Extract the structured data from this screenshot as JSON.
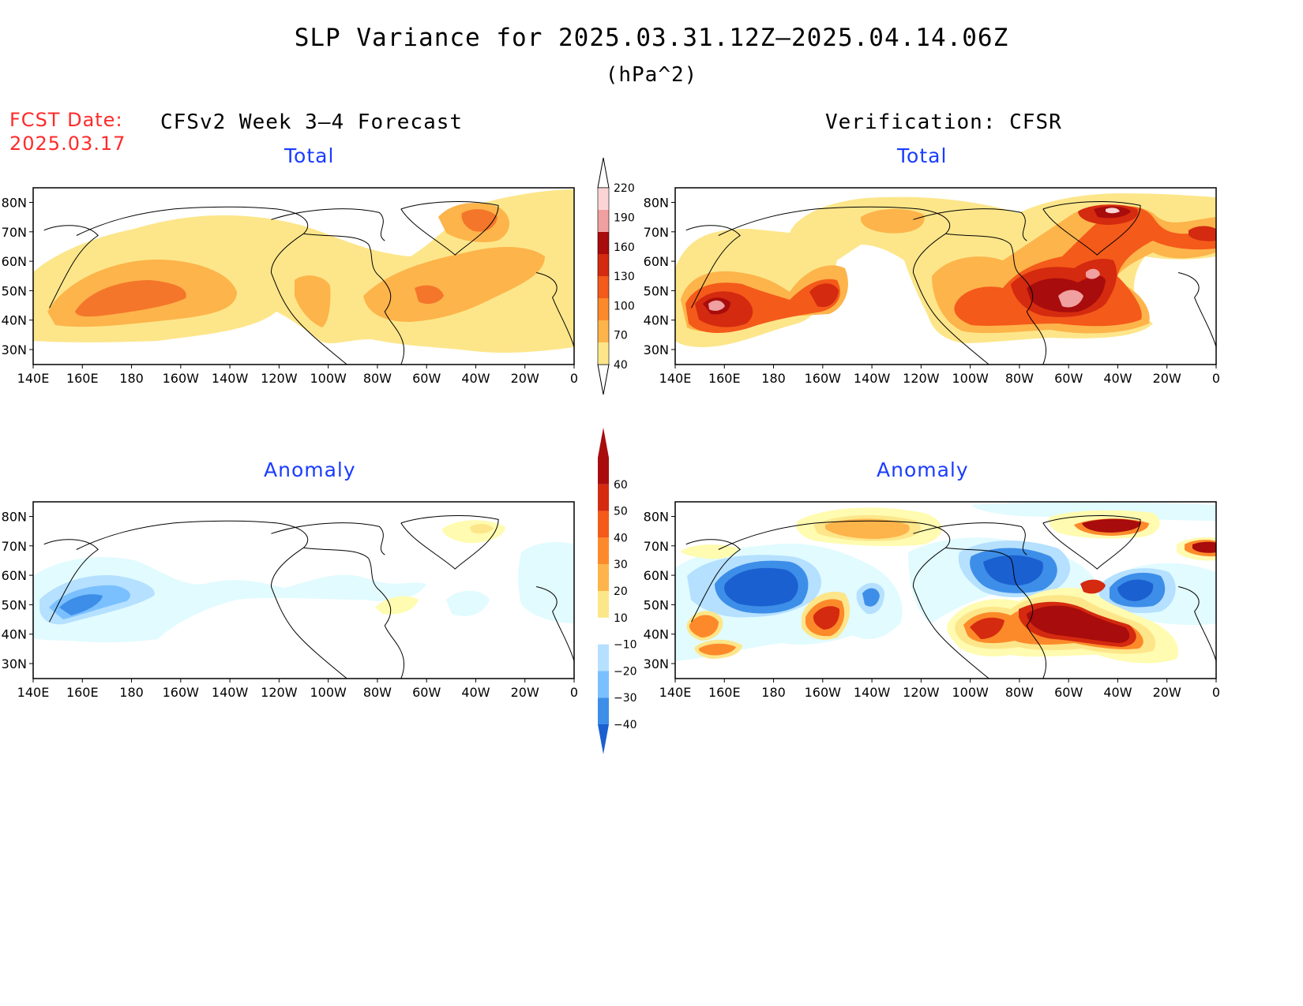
{
  "title": "SLP Variance for 2025.03.31.12Z–2025.04.14.06Z",
  "units": "(hPa^2)",
  "fcst_date_label": "FCST Date:",
  "fcst_date": "2025.03.17",
  "left_header": "CFSv2 Week 3–4 Forecast",
  "right_header": "Verification: CFSR",
  "panels": {
    "fcst_total_title": "Total",
    "verif_total_title": "Total",
    "fcst_anom_title": "Anomaly",
    "verif_anom_title": "Anomaly"
  },
  "axes": {
    "lon_labels": [
      "140E",
      "160E",
      "180",
      "160W",
      "140W",
      "120W",
      "100W",
      "80W",
      "60W",
      "40W",
      "20W",
      "0"
    ],
    "lat_labels": [
      "30N",
      "40N",
      "50N",
      "60N",
      "70N",
      "80N"
    ]
  },
  "colors": {
    "total_scale": [
      "#fde68a",
      "#fdb44b",
      "#fd8a2a",
      "#f45a1a",
      "#d42a0f",
      "#a80c0c",
      "#f0a0a0",
      "#fbd5d5"
    ],
    "anom_pos": [
      "#fffbb0",
      "#fde68a",
      "#fdb44b",
      "#fd8a2a",
      "#f45a1a",
      "#d42a0f",
      "#a80c0c"
    ],
    "anom_neg": [
      "#e1fbff",
      "#b5e0ff",
      "#7ac0ff",
      "#3d8ee8",
      "#1b60d0"
    ]
  },
  "colorbar_total": {
    "labels": [
      "40",
      "70",
      "100",
      "130",
      "160",
      "190",
      "220"
    ]
  },
  "colorbar_anomaly": {
    "labels": [
      "−40",
      "−30",
      "−20",
      "−10",
      "10",
      "20",
      "30",
      "40",
      "50",
      "60"
    ]
  }
}
